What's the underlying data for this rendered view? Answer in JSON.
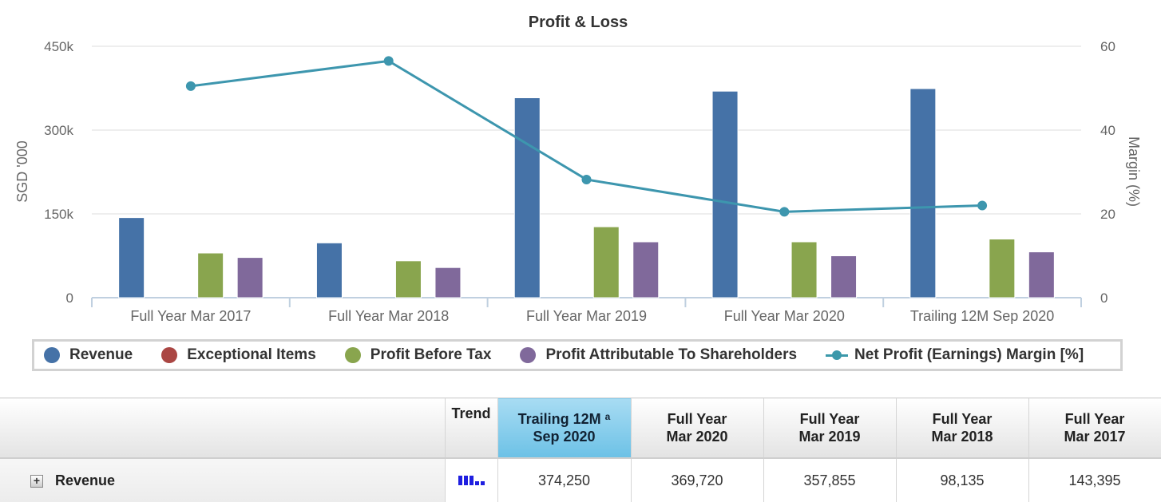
{
  "chart_data": {
    "type": "bar",
    "title": "Profit & Loss",
    "categories": [
      "Full Year Mar 2017",
      "Full Year Mar 2018",
      "Full Year Mar 2019",
      "Full Year Mar 2020",
      "Trailing 12M Sep 2020"
    ],
    "ylabel": "SGD '000",
    "y2label": "Margin (%)",
    "ylim": [
      0,
      450000
    ],
    "y2lim": [
      0,
      60
    ],
    "yticks": [
      "0",
      "150k",
      "300k",
      "450k"
    ],
    "y2ticks": [
      "0",
      "20",
      "40",
      "60"
    ],
    "grid": true,
    "legend_position": "bottom",
    "series": [
      {
        "name": "Revenue",
        "type": "bar",
        "axis": "left",
        "color": "#4572a7",
        "values": [
          143395,
          98135,
          357855,
          369720,
          374250
        ]
      },
      {
        "name": "Exceptional Items",
        "type": "bar",
        "axis": "left",
        "color": "#aa4643",
        "values": [
          0,
          0,
          0,
          0,
          0
        ]
      },
      {
        "name": "Profit Before Tax",
        "type": "bar",
        "axis": "left",
        "color": "#89a54e",
        "values": [
          80000,
          66000,
          127000,
          100000,
          105000
        ]
      },
      {
        "name": "Profit Attributable To Shareholders",
        "type": "bar",
        "axis": "left",
        "color": "#80699b",
        "values": [
          72000,
          54000,
          100000,
          75000,
          82000
        ]
      },
      {
        "name": "Net Profit (Earnings) Margin [%]",
        "type": "line",
        "axis": "right",
        "color": "#3d96ae",
        "values": [
          50.5,
          56.5,
          28.2,
          20.5,
          22.0
        ]
      }
    ]
  },
  "table": {
    "headers": {
      "trend": "Trend",
      "col1_line1": "Trailing 12M",
      "col1_sup": "a",
      "col1_line2": "Sep 2020",
      "col2_line1": "Full Year",
      "col2_line2": "Mar 2020",
      "col3_line1": "Full Year",
      "col3_line2": "Mar 2019",
      "col4_line1": "Full Year",
      "col4_line2": "Mar 2018",
      "col5_line1": "Full Year",
      "col5_line2": "Mar 2017"
    },
    "row": {
      "expand_icon": "plus-icon",
      "label": "Revenue",
      "values": [
        "374,250",
        "369,720",
        "357,855",
        "98,135",
        "143,395"
      ]
    }
  }
}
